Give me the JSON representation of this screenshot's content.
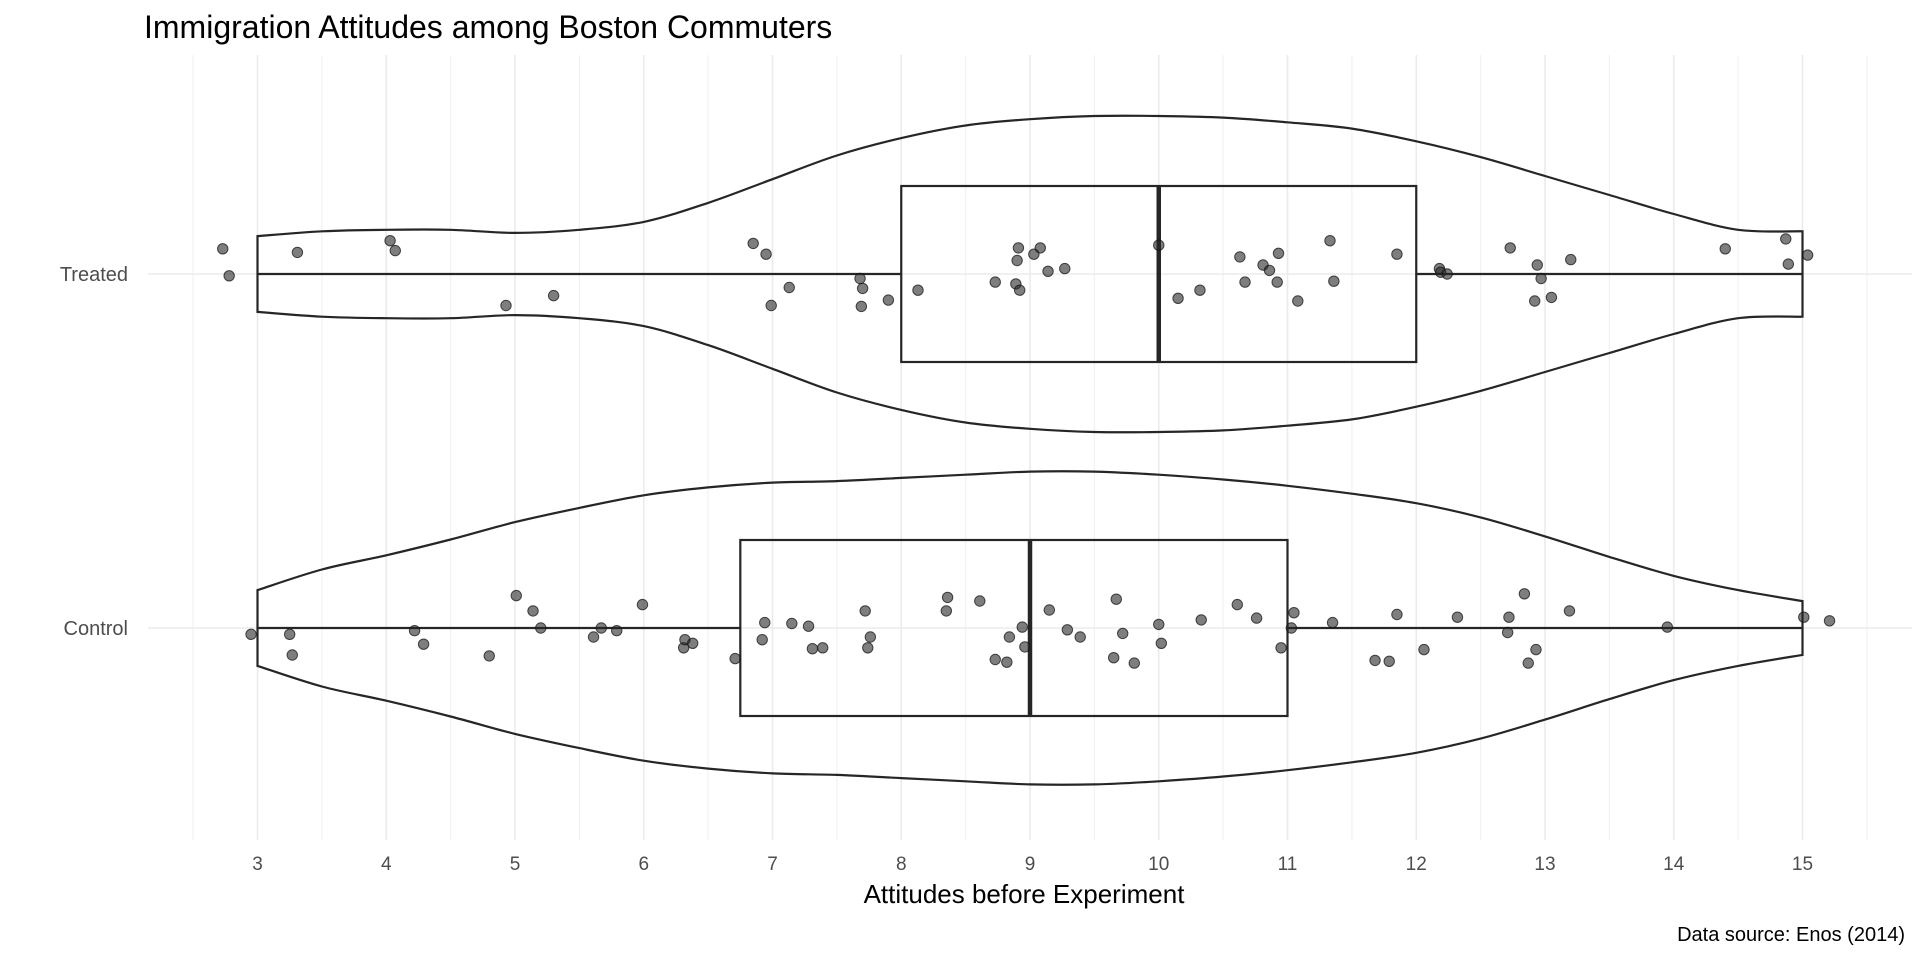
{
  "chart_data": {
    "type": "violin",
    "title": "Immigration Attitudes among Boston Commuters",
    "xlabel": "Attitudes before Experiment",
    "ylabel": "",
    "caption": "Data source: Enos (2014)",
    "xlim": [
      2.5,
      15.5
    ],
    "x_ticks": [
      3,
      4,
      5,
      6,
      7,
      8,
      9,
      10,
      11,
      12,
      13,
      14,
      15
    ],
    "x_tick_labels": [
      "3",
      "4",
      "5",
      "6",
      "7",
      "8",
      "9",
      "10",
      "11",
      "12",
      "13",
      "14",
      "15"
    ],
    "x_minor_ticks": [
      2.5,
      3.5,
      4.5,
      5.5,
      6.5,
      7.5,
      8.5,
      9.5,
      10.5,
      11.5,
      12.5,
      13.5,
      14.5,
      15.5
    ],
    "categories": [
      "Control",
      "Treated"
    ],
    "grid": true,
    "groups": [
      {
        "name": "Treated",
        "box": {
          "min": 3,
          "q1": 8,
          "median": 10,
          "q3": 12,
          "max": 15
        },
        "violin_density": [
          [
            3,
            0.24
          ],
          [
            3.5,
            0.27
          ],
          [
            4,
            0.28
          ],
          [
            4.5,
            0.28
          ],
          [
            5,
            0.26
          ],
          [
            5.5,
            0.28
          ],
          [
            6,
            0.33
          ],
          [
            6.5,
            0.45
          ],
          [
            7,
            0.6
          ],
          [
            7.5,
            0.75
          ],
          [
            8,
            0.86
          ],
          [
            8.5,
            0.94
          ],
          [
            9,
            0.98
          ],
          [
            9.5,
            1.0
          ],
          [
            10,
            1.0
          ],
          [
            10.5,
            0.99
          ],
          [
            11,
            0.96
          ],
          [
            11.5,
            0.92
          ],
          [
            12,
            0.84
          ],
          [
            12.5,
            0.74
          ],
          [
            13,
            0.62
          ],
          [
            13.5,
            0.5
          ],
          [
            14,
            0.38
          ],
          [
            14.5,
            0.28
          ],
          [
            15,
            0.27
          ]
        ],
        "points": [
          [
            2.73,
            -0.28
          ],
          [
            2.78,
            0.02
          ],
          [
            3.31,
            -0.24
          ],
          [
            4.03,
            -0.37
          ],
          [
            4.07,
            -0.26
          ],
          [
            4.93,
            0.35
          ],
          [
            5.3,
            0.24
          ],
          [
            6.85,
            -0.34
          ],
          [
            6.95,
            -0.22
          ],
          [
            6.99,
            0.35
          ],
          [
            7.13,
            0.15
          ],
          [
            7.68,
            0.05
          ],
          [
            7.69,
            0.36
          ],
          [
            7.7,
            0.16
          ],
          [
            7.9,
            0.29
          ],
          [
            8.13,
            0.18
          ],
          [
            8.73,
            0.09
          ],
          [
            8.89,
            0.11
          ],
          [
            8.9,
            -0.15
          ],
          [
            8.91,
            -0.29
          ],
          [
            8.92,
            0.18
          ],
          [
            9.03,
            -0.22
          ],
          [
            9.08,
            -0.29
          ],
          [
            9.14,
            -0.03
          ],
          [
            9.27,
            -0.06
          ],
          [
            10.0,
            -0.32
          ],
          [
            10.15,
            0.27
          ],
          [
            10.32,
            0.18
          ],
          [
            10.63,
            -0.19
          ],
          [
            10.67,
            0.09
          ],
          [
            10.81,
            -0.1
          ],
          [
            10.86,
            -0.04
          ],
          [
            10.92,
            0.09
          ],
          [
            10.93,
            -0.23
          ],
          [
            11.08,
            0.3
          ],
          [
            11.33,
            -0.37
          ],
          [
            11.36,
            0.08
          ],
          [
            11.85,
            -0.22
          ],
          [
            12.18,
            -0.06
          ],
          [
            12.19,
            -0.02
          ],
          [
            12.24,
            0.0
          ],
          [
            12.73,
            -0.29
          ],
          [
            12.92,
            0.3
          ],
          [
            12.94,
            -0.1
          ],
          [
            12.97,
            0.05
          ],
          [
            13.05,
            0.26
          ],
          [
            13.2,
            -0.16
          ],
          [
            14.4,
            -0.28
          ],
          [
            14.87,
            -0.39
          ],
          [
            14.89,
            -0.11
          ],
          [
            15.04,
            -0.21
          ]
        ]
      },
      {
        "name": "Control",
        "box": {
          "min": 3,
          "q1": 6.75,
          "median": 9,
          "q3": 11,
          "max": 15
        },
        "violin_density": [
          [
            3,
            0.24
          ],
          [
            3.5,
            0.37
          ],
          [
            4,
            0.46
          ],
          [
            4.5,
            0.56
          ],
          [
            5,
            0.67
          ],
          [
            5.5,
            0.76
          ],
          [
            6,
            0.84
          ],
          [
            6.5,
            0.89
          ],
          [
            7,
            0.92
          ],
          [
            7.5,
            0.93
          ],
          [
            8,
            0.95
          ],
          [
            8.5,
            0.97
          ],
          [
            9,
            0.99
          ],
          [
            9.5,
            0.99
          ],
          [
            10,
            0.97
          ],
          [
            10.5,
            0.94
          ],
          [
            11,
            0.9
          ],
          [
            11.5,
            0.85
          ],
          [
            12,
            0.79
          ],
          [
            12.5,
            0.7
          ],
          [
            13,
            0.58
          ],
          [
            13.5,
            0.45
          ],
          [
            14,
            0.33
          ],
          [
            14.5,
            0.24
          ],
          [
            15,
            0.17
          ]
        ],
        "points": [
          [
            2.95,
            0.07
          ],
          [
            3.25,
            0.07
          ],
          [
            3.27,
            0.3
          ],
          [
            4.22,
            0.03
          ],
          [
            4.29,
            0.18
          ],
          [
            4.8,
            0.31
          ],
          [
            5.01,
            -0.36
          ],
          [
            5.14,
            -0.19
          ],
          [
            5.2,
            0.0
          ],
          [
            5.61,
            0.1
          ],
          [
            5.67,
            0.0
          ],
          [
            5.79,
            0.03
          ],
          [
            5.99,
            -0.26
          ],
          [
            6.31,
            0.22
          ],
          [
            6.32,
            0.13
          ],
          [
            6.38,
            0.17
          ],
          [
            6.71,
            0.34
          ],
          [
            6.92,
            0.13
          ],
          [
            6.94,
            -0.06
          ],
          [
            7.15,
            -0.05
          ],
          [
            7.28,
            -0.02
          ],
          [
            7.31,
            0.23
          ],
          [
            7.39,
            0.22
          ],
          [
            7.72,
            -0.19
          ],
          [
            7.74,
            0.22
          ],
          [
            7.76,
            0.1
          ],
          [
            8.35,
            -0.19
          ],
          [
            8.36,
            -0.34
          ],
          [
            8.61,
            -0.3
          ],
          [
            8.73,
            0.35
          ],
          [
            8.82,
            0.38
          ],
          [
            8.84,
            0.1
          ],
          [
            8.94,
            -0.01
          ],
          [
            8.96,
            0.21
          ],
          [
            9.15,
            -0.2
          ],
          [
            9.29,
            0.02
          ],
          [
            9.39,
            0.1
          ],
          [
            9.65,
            0.33
          ],
          [
            9.67,
            -0.32
          ],
          [
            9.72,
            0.06
          ],
          [
            9.81,
            0.39
          ],
          [
            10.0,
            -0.04
          ],
          [
            10.02,
            0.17
          ],
          [
            10.33,
            -0.09
          ],
          [
            10.61,
            -0.26
          ],
          [
            10.76,
            -0.11
          ],
          [
            10.95,
            0.22
          ],
          [
            11.03,
            0.0
          ],
          [
            11.05,
            -0.17
          ],
          [
            11.35,
            -0.06
          ],
          [
            11.68,
            0.36
          ],
          [
            11.79,
            0.37
          ],
          [
            11.85,
            -0.15
          ],
          [
            12.06,
            0.24
          ],
          [
            12.32,
            -0.12
          ],
          [
            12.71,
            0.05
          ],
          [
            12.72,
            -0.12
          ],
          [
            12.84,
            -0.38
          ],
          [
            12.87,
            0.39
          ],
          [
            12.93,
            0.24
          ],
          [
            13.19,
            -0.19
          ],
          [
            13.95,
            -0.01
          ],
          [
            15.01,
            -0.12
          ],
          [
            15.21,
            -0.08
          ]
        ]
      }
    ]
  }
}
